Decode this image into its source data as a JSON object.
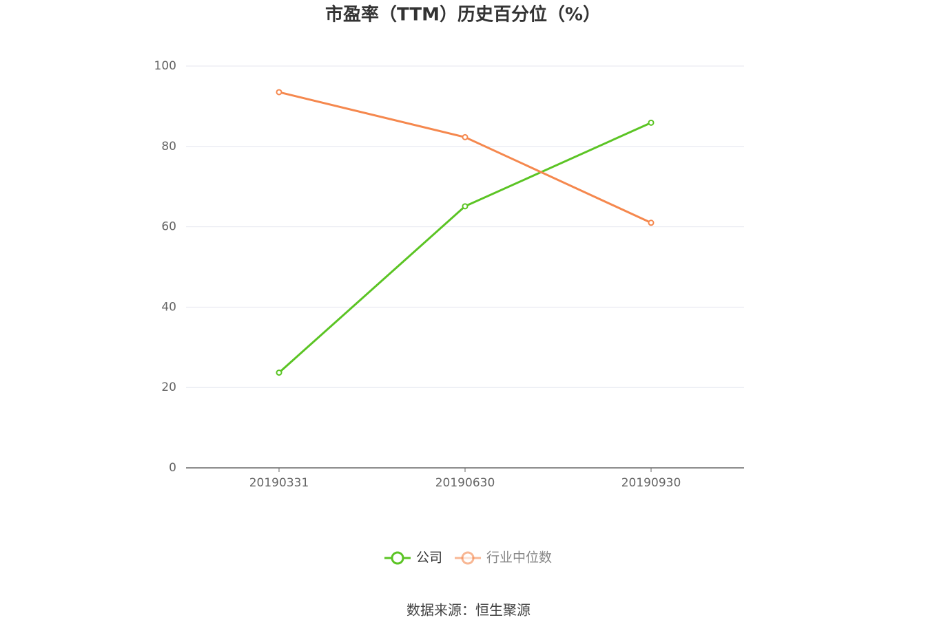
{
  "chart_data": {
    "type": "line",
    "title": "市盈率（TTM）历史百分位（%）",
    "categories": [
      "20190331",
      "20190630",
      "20190930"
    ],
    "series": [
      {
        "name": "公司",
        "color": "#5bc424",
        "values": [
          23.7,
          65.1,
          85.9
        ]
      },
      {
        "name": "行业中位数",
        "color": "#f5884e",
        "values": [
          93.5,
          82.3,
          61.0
        ]
      }
    ],
    "ylim": [
      0,
      100
    ],
    "yticks": [
      0,
      20,
      40,
      60,
      80,
      100
    ],
    "grid": true,
    "legend": "bottom",
    "source": "数据来源：恒生聚源"
  }
}
